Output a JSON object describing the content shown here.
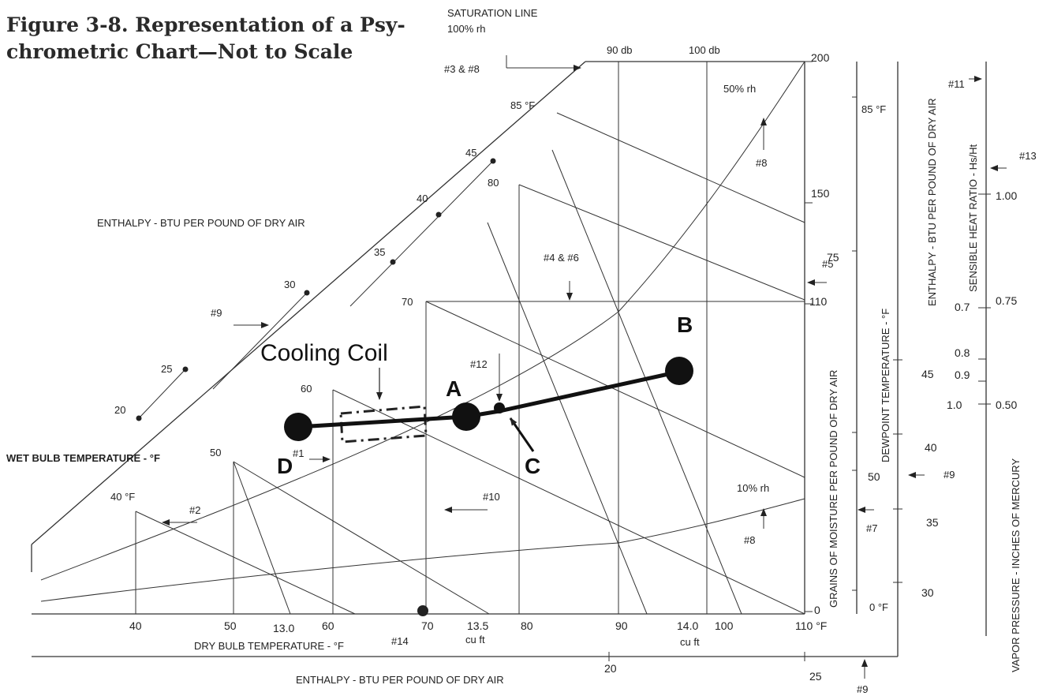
{
  "figure": {
    "title_line1": "Figure 3-8. Representation of a Psy-",
    "title_line2": "chrometric Chart—Not to Scale"
  },
  "top": {
    "saturation_line": "SATURATION LINE",
    "saturation_rh": "100% rh",
    "ref_3_8": "#3 & #8",
    "db_90": "90 db",
    "db_100": "100 db"
  },
  "enthalpy_scale": {
    "label_upper": "ENTHALPY - BTU PER POUND OF DRY AIR",
    "label_bottom": "ENTHALPY - BTU PER POUND OF DRY AIR",
    "label_right": "ENTHALPY - BTU PER POUND OF DRY AIR",
    "ticks": [
      "20",
      "25",
      "30",
      "35",
      "40",
      "45"
    ],
    "bottom_ticks": [
      "20",
      "25"
    ]
  },
  "wet_bulb": {
    "label": "WET BULB TEMPERATURE - °F",
    "ticks": [
      "40 °F",
      "50",
      "60",
      "70",
      "80",
      "85 °F"
    ]
  },
  "dry_bulb": {
    "label": "DRY BULB TEMPERATURE - °F",
    "ticks": [
      "40",
      "50",
      "60",
      "70",
      "80",
      "90",
      "100",
      "110 °F"
    ]
  },
  "volume": {
    "v13_0": "13.0",
    "v13_5": "13.5",
    "v14_0": "14.0",
    "unit": "cu ft"
  },
  "rh": {
    "rh50": "50% rh",
    "rh10": "10% rh"
  },
  "moisture": {
    "label": "GRAINS OF MOISTURE PER POUND OF DRY AIR",
    "ticks": [
      "200",
      "150",
      "110",
      "0"
    ]
  },
  "dewpoint": {
    "label": "DEWPOINT TEMPERATURE - °F",
    "ticks": [
      "85 °F",
      "75",
      "45",
      "40",
      "50",
      "35",
      "30",
      "0 °F"
    ]
  },
  "shr": {
    "label": "SENSIBLE HEAT RATIO - Hs/Ht",
    "ticks": [
      "1.00",
      "0.75",
      "0.50"
    ],
    "inner_ticks": [
      "0.7",
      "0.8",
      "0.9",
      "1.0"
    ]
  },
  "vapor": {
    "label": "VAPOR PRESSURE - INCHES OF MERCURY"
  },
  "refs": {
    "r1": "#1",
    "r2": "#2",
    "r4_6": "#4 & #6",
    "r5": "#5",
    "r7": "#7",
    "r8": "#8",
    "r9": "#9",
    "r10": "#10",
    "r11": "#11",
    "r12": "#12",
    "r13": "#13",
    "r14": "#14"
  },
  "process": {
    "cooling_coil": "Cooling Coil",
    "point_a": "A",
    "point_b": "B",
    "point_c": "C",
    "point_d": "D"
  }
}
